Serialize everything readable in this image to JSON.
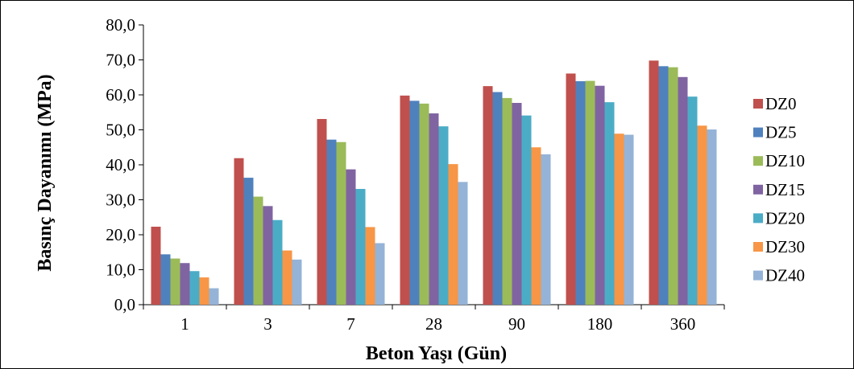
{
  "chart_data": {
    "type": "bar",
    "xlabel": "Beton Yaşı (Gün)",
    "ylabel": "Basınç Dayanımı (MPa)",
    "ylim": [
      0,
      80
    ],
    "yticks": [
      "0,0",
      "10,0",
      "20,0",
      "30,0",
      "40,0",
      "50,0",
      "60,0",
      "70,0",
      "80,0"
    ],
    "categories": [
      "1",
      "3",
      "7",
      "28",
      "90",
      "180",
      "360"
    ],
    "grid": false,
    "legend_position": "right",
    "series": [
      {
        "name": "DZ0",
        "color": "#C0504D",
        "values": [
          22.3,
          41.9,
          53.1,
          59.8,
          62.5,
          66.1,
          69.8
        ]
      },
      {
        "name": "DZ5",
        "color": "#4F81BD",
        "values": [
          14.4,
          36.3,
          47.2,
          58.3,
          60.8,
          63.9,
          68.2
        ]
      },
      {
        "name": "DZ10",
        "color": "#9BBB59",
        "values": [
          13.2,
          30.9,
          46.5,
          57.5,
          59.1,
          64.0,
          67.9
        ]
      },
      {
        "name": "DZ15",
        "color": "#8064A2",
        "values": [
          11.9,
          28.2,
          38.7,
          54.7,
          57.7,
          62.6,
          65.1
        ]
      },
      {
        "name": "DZ20",
        "color": "#4BACC6",
        "values": [
          9.6,
          24.2,
          33.1,
          51.0,
          54.1,
          57.9,
          59.5
        ]
      },
      {
        "name": "DZ30",
        "color": "#F79646",
        "values": [
          7.8,
          15.5,
          22.2,
          40.2,
          45.0,
          48.9,
          51.2
        ]
      },
      {
        "name": "DZ40",
        "color": "#95B3D7",
        "values": [
          4.7,
          12.9,
          17.6,
          35.1,
          43.0,
          48.6,
          50.1
        ]
      }
    ]
  }
}
